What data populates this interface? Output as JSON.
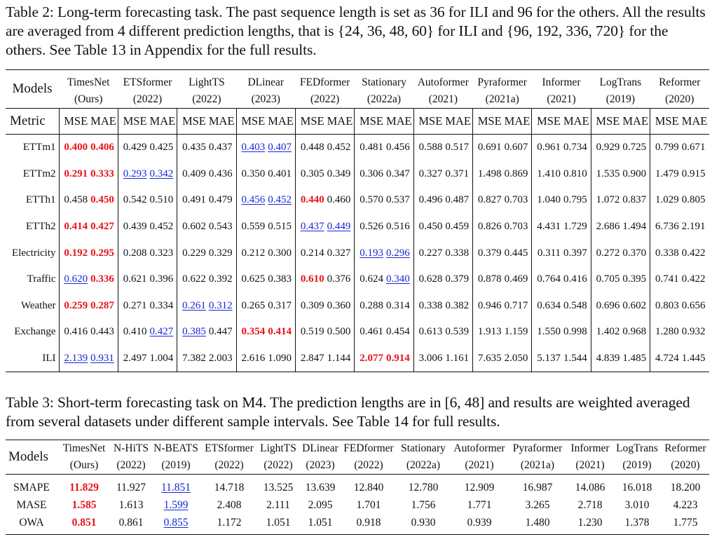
{
  "table2": {
    "caption": "Table 2: Long-term forecasting task. The past sequence length is set as 36 for ILI and 96 for the others. All the results are averaged from 4 different prediction lengths, that is {24, 36, 48, 60} for ILI and {96, 192, 336, 720} for the others. See Table 13 in Appendix for the full results.",
    "models_label": "Models",
    "metric_label": "Metric",
    "mse_label": "MSE",
    "mae_label": "MAE",
    "models": [
      {
        "name": "TimesNet",
        "year": "(Ours)",
        "bold": true
      },
      {
        "name": "ETSformer",
        "year": "(2022)"
      },
      {
        "name": "LightTS",
        "year": "(2022)"
      },
      {
        "name": "DLinear",
        "year": "(2023)"
      },
      {
        "name": "FEDformer",
        "year": "(2022)"
      },
      {
        "name": "Stationary",
        "year": "(2022a)"
      },
      {
        "name": "Autoformer",
        "year": "(2021)"
      },
      {
        "name": "Pyraformer",
        "year": "(2021a)"
      },
      {
        "name": "Informer",
        "year": "(2021)"
      },
      {
        "name": "LogTrans",
        "year": "(2019)"
      },
      {
        "name": "Reformer",
        "year": "(2020)"
      }
    ],
    "rows": [
      {
        "dataset": "ETTm1",
        "values": [
          [
            "0.400",
            "b"
          ],
          [
            "0.406",
            "b"
          ],
          [
            "0.429",
            ""
          ],
          [
            "0.425",
            ""
          ],
          [
            "0.435",
            ""
          ],
          [
            "0.437",
            ""
          ],
          [
            "0.403",
            "s"
          ],
          [
            "0.407",
            "s"
          ],
          [
            "0.448",
            ""
          ],
          [
            "0.452",
            ""
          ],
          [
            "0.481",
            ""
          ],
          [
            "0.456",
            ""
          ],
          [
            "0.588",
            ""
          ],
          [
            "0.517",
            ""
          ],
          [
            "0.691",
            ""
          ],
          [
            "0.607",
            ""
          ],
          [
            "0.961",
            ""
          ],
          [
            "0.734",
            ""
          ],
          [
            "0.929",
            ""
          ],
          [
            "0.725",
            ""
          ],
          [
            "0.799",
            ""
          ],
          [
            "0.671",
            ""
          ]
        ]
      },
      {
        "dataset": "ETTm2",
        "values": [
          [
            "0.291",
            "b"
          ],
          [
            "0.333",
            "b"
          ],
          [
            "0.293",
            "s"
          ],
          [
            "0.342",
            "s"
          ],
          [
            "0.409",
            ""
          ],
          [
            "0.436",
            ""
          ],
          [
            "0.350",
            ""
          ],
          [
            "0.401",
            ""
          ],
          [
            "0.305",
            ""
          ],
          [
            "0.349",
            ""
          ],
          [
            "0.306",
            ""
          ],
          [
            "0.347",
            ""
          ],
          [
            "0.327",
            ""
          ],
          [
            "0.371",
            ""
          ],
          [
            "1.498",
            ""
          ],
          [
            "0.869",
            ""
          ],
          [
            "1.410",
            ""
          ],
          [
            "0.810",
            ""
          ],
          [
            "1.535",
            ""
          ],
          [
            "0.900",
            ""
          ],
          [
            "1.479",
            ""
          ],
          [
            "0.915",
            ""
          ]
        ]
      },
      {
        "dataset": "ETTh1",
        "values": [
          [
            "0.458",
            ""
          ],
          [
            "0.450",
            "b"
          ],
          [
            "0.542",
            ""
          ],
          [
            "0.510",
            ""
          ],
          [
            "0.491",
            ""
          ],
          [
            "0.479",
            ""
          ],
          [
            "0.456",
            "s"
          ],
          [
            "0.452",
            "s"
          ],
          [
            "0.440",
            "b"
          ],
          [
            "0.460",
            ""
          ],
          [
            "0.570",
            ""
          ],
          [
            "0.537",
            ""
          ],
          [
            "0.496",
            ""
          ],
          [
            "0.487",
            ""
          ],
          [
            "0.827",
            ""
          ],
          [
            "0.703",
            ""
          ],
          [
            "1.040",
            ""
          ],
          [
            "0.795",
            ""
          ],
          [
            "1.072",
            ""
          ],
          [
            "0.837",
            ""
          ],
          [
            "1.029",
            ""
          ],
          [
            "0.805",
            ""
          ]
        ]
      },
      {
        "dataset": "ETTh2",
        "values": [
          [
            "0.414",
            "b"
          ],
          [
            "0.427",
            "b"
          ],
          [
            "0.439",
            ""
          ],
          [
            "0.452",
            ""
          ],
          [
            "0.602",
            ""
          ],
          [
            "0.543",
            ""
          ],
          [
            "0.559",
            ""
          ],
          [
            "0.515",
            ""
          ],
          [
            "0.437",
            "s"
          ],
          [
            "0.449",
            "s"
          ],
          [
            "0.526",
            ""
          ],
          [
            "0.516",
            ""
          ],
          [
            "0.450",
            ""
          ],
          [
            "0.459",
            ""
          ],
          [
            "0.826",
            ""
          ],
          [
            "0.703",
            ""
          ],
          [
            "4.431",
            ""
          ],
          [
            "1.729",
            ""
          ],
          [
            "2.686",
            ""
          ],
          [
            "1.494",
            ""
          ],
          [
            "6.736",
            ""
          ],
          [
            "2.191",
            ""
          ]
        ]
      },
      {
        "dataset": "Electricity",
        "values": [
          [
            "0.192",
            "b"
          ],
          [
            "0.295",
            "b"
          ],
          [
            "0.208",
            ""
          ],
          [
            "0.323",
            ""
          ],
          [
            "0.229",
            ""
          ],
          [
            "0.329",
            ""
          ],
          [
            "0.212",
            ""
          ],
          [
            "0.300",
            ""
          ],
          [
            "0.214",
            ""
          ],
          [
            "0.327",
            ""
          ],
          [
            "0.193",
            "s"
          ],
          [
            "0.296",
            "s"
          ],
          [
            "0.227",
            ""
          ],
          [
            "0.338",
            ""
          ],
          [
            "0.379",
            ""
          ],
          [
            "0.445",
            ""
          ],
          [
            "0.311",
            ""
          ],
          [
            "0.397",
            ""
          ],
          [
            "0.272",
            ""
          ],
          [
            "0.370",
            ""
          ],
          [
            "0.338",
            ""
          ],
          [
            "0.422",
            ""
          ]
        ]
      },
      {
        "dataset": "Traffic",
        "values": [
          [
            "0.620",
            "s"
          ],
          [
            "0.336",
            "b"
          ],
          [
            "0.621",
            ""
          ],
          [
            "0.396",
            ""
          ],
          [
            "0.622",
            ""
          ],
          [
            "0.392",
            ""
          ],
          [
            "0.625",
            ""
          ],
          [
            "0.383",
            ""
          ],
          [
            "0.610",
            "b"
          ],
          [
            "0.376",
            ""
          ],
          [
            "0.624",
            ""
          ],
          [
            "0.340",
            "s"
          ],
          [
            "0.628",
            ""
          ],
          [
            "0.379",
            ""
          ],
          [
            "0.878",
            ""
          ],
          [
            "0.469",
            ""
          ],
          [
            "0.764",
            ""
          ],
          [
            "0.416",
            ""
          ],
          [
            "0.705",
            ""
          ],
          [
            "0.395",
            ""
          ],
          [
            "0.741",
            ""
          ],
          [
            "0.422",
            ""
          ]
        ]
      },
      {
        "dataset": "Weather",
        "values": [
          [
            "0.259",
            "b"
          ],
          [
            "0.287",
            "b"
          ],
          [
            "0.271",
            ""
          ],
          [
            "0.334",
            ""
          ],
          [
            "0.261",
            "s"
          ],
          [
            "0.312",
            "s"
          ],
          [
            "0.265",
            ""
          ],
          [
            "0.317",
            ""
          ],
          [
            "0.309",
            ""
          ],
          [
            "0.360",
            ""
          ],
          [
            "0.288",
            ""
          ],
          [
            "0.314",
            ""
          ],
          [
            "0.338",
            ""
          ],
          [
            "0.382",
            ""
          ],
          [
            "0.946",
            ""
          ],
          [
            "0.717",
            ""
          ],
          [
            "0.634",
            ""
          ],
          [
            "0.548",
            ""
          ],
          [
            "0.696",
            ""
          ],
          [
            "0.602",
            ""
          ],
          [
            "0.803",
            ""
          ],
          [
            "0.656",
            ""
          ]
        ]
      },
      {
        "dataset": "Exchange",
        "values": [
          [
            "0.416",
            ""
          ],
          [
            "0.443",
            ""
          ],
          [
            "0.410",
            ""
          ],
          [
            "0.427",
            "s"
          ],
          [
            "0.385",
            "s"
          ],
          [
            "0.447",
            ""
          ],
          [
            "0.354",
            "b"
          ],
          [
            "0.414",
            "b"
          ],
          [
            "0.519",
            ""
          ],
          [
            "0.500",
            ""
          ],
          [
            "0.461",
            ""
          ],
          [
            "0.454",
            ""
          ],
          [
            "0.613",
            ""
          ],
          [
            "0.539",
            ""
          ],
          [
            "1.913",
            ""
          ],
          [
            "1.159",
            ""
          ],
          [
            "1.550",
            ""
          ],
          [
            "0.998",
            ""
          ],
          [
            "1.402",
            ""
          ],
          [
            "0.968",
            ""
          ],
          [
            "1.280",
            ""
          ],
          [
            "0.932",
            ""
          ]
        ]
      },
      {
        "dataset": "ILI",
        "values": [
          [
            "2.139",
            "s"
          ],
          [
            "0.931",
            "s"
          ],
          [
            "2.497",
            ""
          ],
          [
            "1.004",
            ""
          ],
          [
            "7.382",
            ""
          ],
          [
            "2.003",
            ""
          ],
          [
            "2.616",
            ""
          ],
          [
            "1.090",
            ""
          ],
          [
            "2.847",
            ""
          ],
          [
            "1.144",
            ""
          ],
          [
            "2.077",
            "b"
          ],
          [
            "0.914",
            "b"
          ],
          [
            "3.006",
            ""
          ],
          [
            "1.161",
            ""
          ],
          [
            "7.635",
            ""
          ],
          [
            "2.050",
            ""
          ],
          [
            "5.137",
            ""
          ],
          [
            "1.544",
            ""
          ],
          [
            "4.839",
            ""
          ],
          [
            "1.485",
            ""
          ],
          [
            "4.724",
            ""
          ],
          [
            "1.445",
            ""
          ]
        ]
      }
    ]
  },
  "table3": {
    "caption": "Table 3: Short-term forecasting task on M4. The prediction lengths are in [6, 48] and results are weighted averaged from several datasets under different sample intervals. See Table 14 for full results.",
    "models_label": "Models",
    "models": [
      {
        "name": "TimesNet",
        "year": "(Ours)",
        "bold": true
      },
      {
        "name": "N-HiTS",
        "year": "(2022)"
      },
      {
        "name": "N-BEATS",
        "year": "(2019)"
      },
      {
        "name": "ETSformer",
        "year": "(2022)"
      },
      {
        "name": "LightTS",
        "year": "(2022)"
      },
      {
        "name": "DLinear",
        "year": "(2023)"
      },
      {
        "name": "FEDformer",
        "year": "(2022)"
      },
      {
        "name": "Stationary",
        "year": "(2022a)"
      },
      {
        "name": "Autoformer",
        "year": "(2021)"
      },
      {
        "name": "Pyraformer",
        "year": "(2021a)"
      },
      {
        "name": "Informer",
        "year": "(2021)"
      },
      {
        "name": "LogTrans",
        "year": "(2019)"
      },
      {
        "name": "Reformer",
        "year": "(2020)"
      }
    ],
    "rows": [
      {
        "metric": "SMAPE",
        "values": [
          [
            "11.829",
            "b"
          ],
          [
            "11.927",
            ""
          ],
          [
            "11.851",
            "s"
          ],
          [
            "14.718",
            ""
          ],
          [
            "13.525",
            ""
          ],
          [
            "13.639",
            ""
          ],
          [
            "12.840",
            ""
          ],
          [
            "12.780",
            ""
          ],
          [
            "12.909",
            ""
          ],
          [
            "16.987",
            ""
          ],
          [
            "14.086",
            ""
          ],
          [
            "16.018",
            ""
          ],
          [
            "18.200",
            ""
          ]
        ]
      },
      {
        "metric": "MASE",
        "values": [
          [
            "1.585",
            "b"
          ],
          [
            "1.613",
            ""
          ],
          [
            "1.599",
            "s"
          ],
          [
            "2.408",
            ""
          ],
          [
            "2.111",
            ""
          ],
          [
            "2.095",
            ""
          ],
          [
            "1.701",
            ""
          ],
          [
            "1.756",
            ""
          ],
          [
            "1.771",
            ""
          ],
          [
            "3.265",
            ""
          ],
          [
            "2.718",
            ""
          ],
          [
            "3.010",
            ""
          ],
          [
            "4.223",
            ""
          ]
        ]
      },
      {
        "metric": "OWA",
        "values": [
          [
            "0.851",
            "b"
          ],
          [
            "0.861",
            ""
          ],
          [
            "0.855",
            "s"
          ],
          [
            "1.172",
            ""
          ],
          [
            "1.051",
            ""
          ],
          [
            "1.051",
            ""
          ],
          [
            "0.918",
            ""
          ],
          [
            "0.930",
            ""
          ],
          [
            "0.939",
            ""
          ],
          [
            "1.480",
            ""
          ],
          [
            "1.230",
            ""
          ],
          [
            "1.378",
            ""
          ],
          [
            "1.775",
            ""
          ]
        ]
      }
    ]
  },
  "colors": {
    "best": "#e8121a",
    "second": "#1626d6",
    "text": "#111111"
  }
}
